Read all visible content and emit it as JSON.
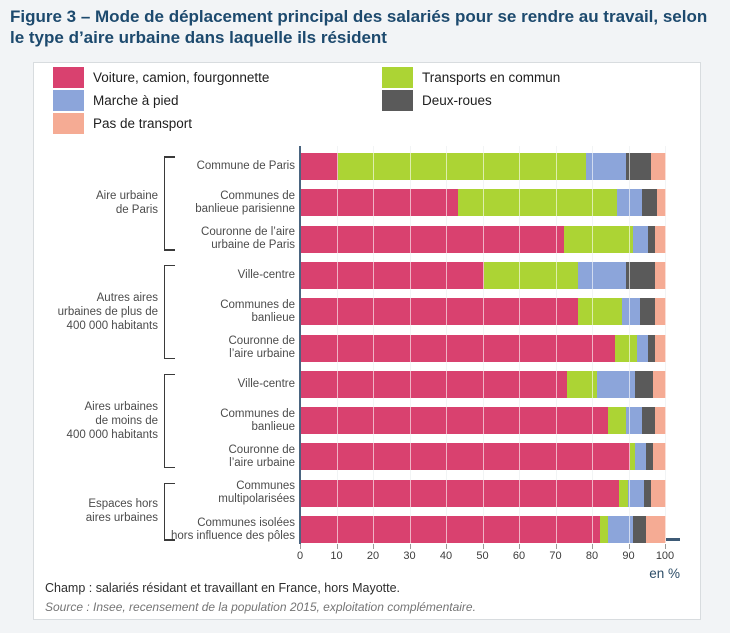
{
  "ui": {
    "title": "Figure 3 – Mode de déplacement principal des salariés pour se rendre au travail, selon le type d’aire urbaine dans laquelle ils résident",
    "unit_label": "en %",
    "champ": "Champ : salariés résidant et travaillant en France, hors Mayotte.",
    "source": "Source : Insee, recensement de la population 2015, exploitation complémentaire."
  },
  "chart_data": {
    "type": "bar",
    "subtype": "horizontal-stacked",
    "unit": "%",
    "xlim": [
      0,
      100
    ],
    "x_ticks": [
      0,
      10,
      20,
      30,
      40,
      50,
      60,
      70,
      80,
      90,
      100
    ],
    "grid": true,
    "legend_position": "top",
    "series": [
      {
        "name": "Voiture, camion, fourgonnette",
        "color": "#d9416f"
      },
      {
        "name": "Transports en commun",
        "color": "#acd434"
      },
      {
        "name": "Marche à pied",
        "color": "#8ca5da"
      },
      {
        "name": "Deux-roues",
        "color": "#5a5a5a"
      },
      {
        "name": "Pas de transport",
        "color": "#f5ab94"
      }
    ],
    "groups": [
      {
        "label": "Aire urbaine\nde Paris",
        "rows": [
          {
            "label": "Commune de Paris",
            "values": [
              10,
              68,
              11,
              7,
              4
            ]
          },
          {
            "label": "Communes de\nbanlieue parisienne",
            "values": [
              43,
              43.5,
              7,
              4,
              2.5
            ]
          },
          {
            "label": "Couronne de l’aire\nurbaine de Paris",
            "values": [
              72,
              19,
              4,
              2,
              3
            ]
          }
        ]
      },
      {
        "label": "Autres aires\nurbaines de plus de\n400 000 habitants",
        "rows": [
          {
            "label": "Ville-centre",
            "values": [
              50,
              26,
              13,
              8,
              3
            ]
          },
          {
            "label": "Communes de\nbanlieue",
            "values": [
              76,
              12,
              5,
              4,
              3
            ]
          },
          {
            "label": "Couronne de\nl’aire urbaine",
            "values": [
              86,
              6,
              3,
              2,
              3
            ]
          }
        ]
      },
      {
        "label": "Aires urbaines\nde moins de\n400 000 habitants",
        "rows": [
          {
            "label": "Ville-centre",
            "values": [
              73,
              8,
              10.5,
              5,
              3.5
            ]
          },
          {
            "label": "Communes de\nbanlieue",
            "values": [
              84,
              5,
              4.5,
              3.5,
              3
            ]
          },
          {
            "label": "Couronne de\nl’aire urbaine",
            "values": [
              90,
              1.5,
              3,
              2,
              3.5
            ]
          }
        ]
      },
      {
        "label": "Espaces hors\naires urbaines",
        "rows": [
          {
            "label": "Communes\nmultipolarisées",
            "values": [
              87,
              2.5,
              4.5,
              2,
              4
            ]
          },
          {
            "label": "Communes isolées\nhors influence des pôles",
            "values": [
              82,
              2,
              7,
              3.5,
              5.5
            ]
          }
        ]
      }
    ]
  }
}
